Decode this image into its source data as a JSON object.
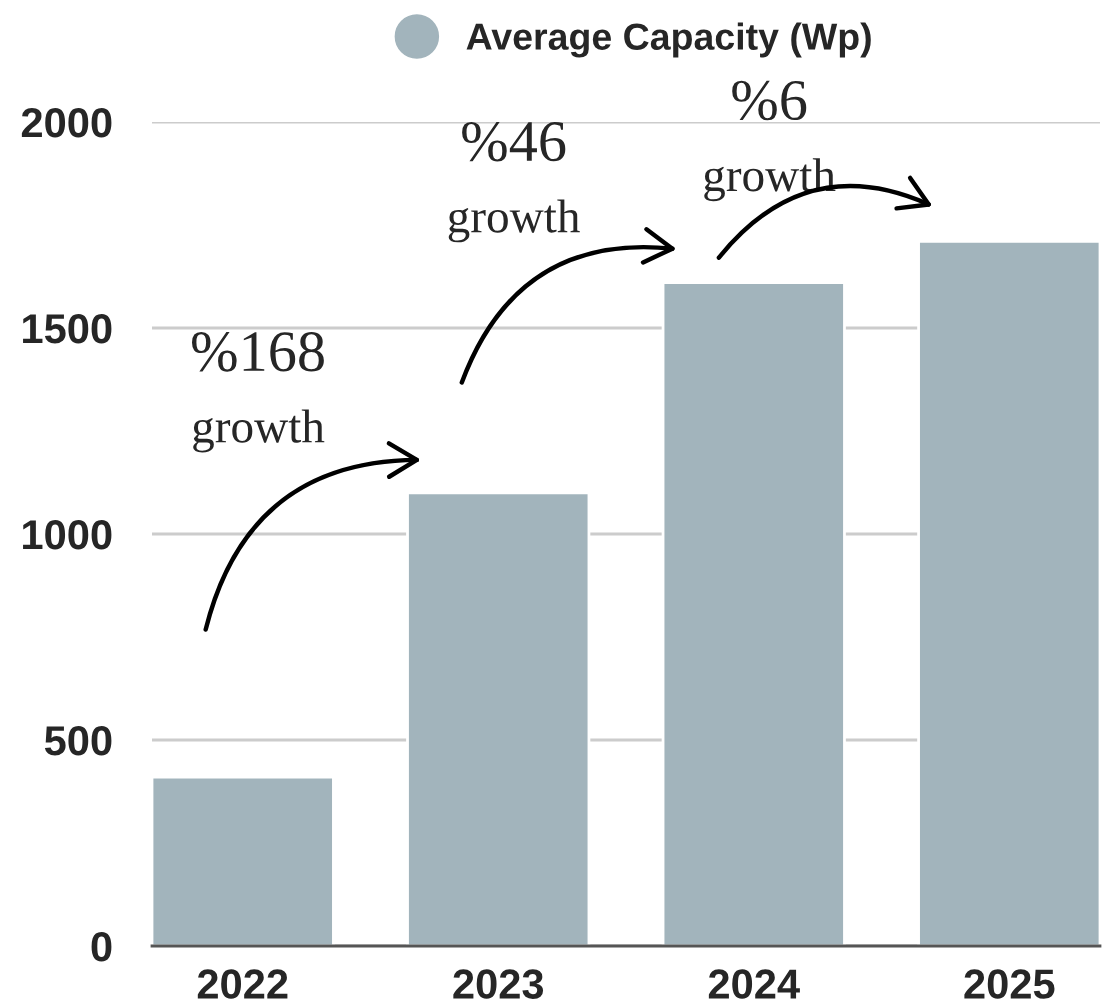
{
  "chart_data": {
    "type": "bar",
    "categories": [
      "2022",
      "2023",
      "2024",
      "2025"
    ],
    "series": [
      {
        "name": "Average Capacity (Wp)",
        "color": "#a2b4bc",
        "values": [
          410,
          1100,
          1610,
          1710
        ]
      }
    ],
    "ylim": [
      0,
      2000
    ],
    "yticks": [
      0,
      500,
      1000,
      1500,
      2000
    ],
    "grid": "y",
    "legend": "top",
    "annotations": [
      "%168\ngrowth",
      "%46\ngrowth",
      "%6\ngrowth"
    ]
  }
}
